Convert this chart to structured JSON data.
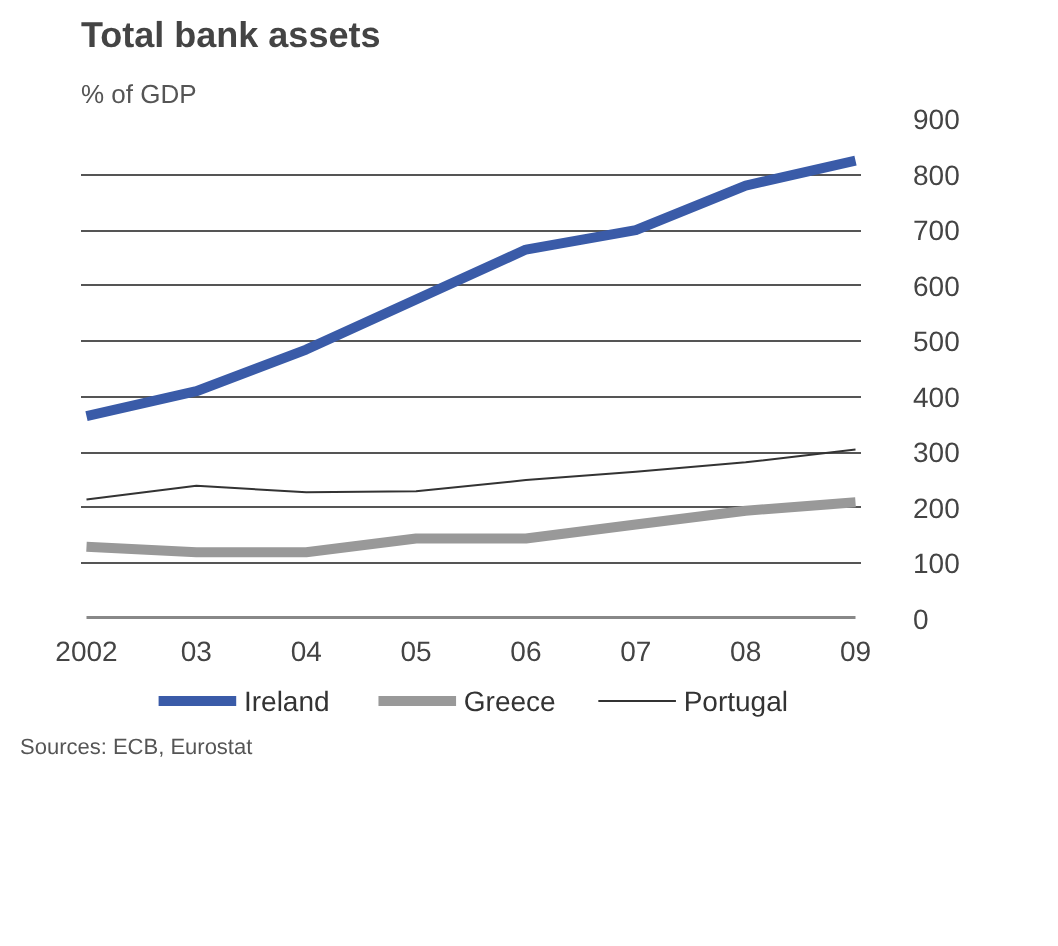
{
  "chart_data": {
    "type": "line",
    "title": "Total bank assets",
    "subtitle": "% of GDP",
    "categories": [
      "2002",
      "03",
      "04",
      "05",
      "06",
      "07",
      "08",
      "09"
    ],
    "series": [
      {
        "name": "Ireland",
        "color": "#3a5ba8",
        "values": [
          365,
          410,
          485,
          575,
          665,
          700,
          780,
          825
        ]
      },
      {
        "name": "Greece",
        "color": "#999999",
        "values": [
          130,
          120,
          120,
          145,
          145,
          170,
          195,
          210
        ]
      },
      {
        "name": "Portugal",
        "color": "#333333",
        "values": [
          215,
          240,
          228,
          230,
          250,
          265,
          282,
          305
        ]
      }
    ],
    "ylim": [
      0,
      900
    ],
    "yticks": [
      0,
      100,
      200,
      300,
      400,
      500,
      600,
      700,
      800,
      900
    ],
    "grid": "y",
    "legend": "bottom",
    "annotations": [
      "Sources: ECB, Eurostat"
    ]
  }
}
